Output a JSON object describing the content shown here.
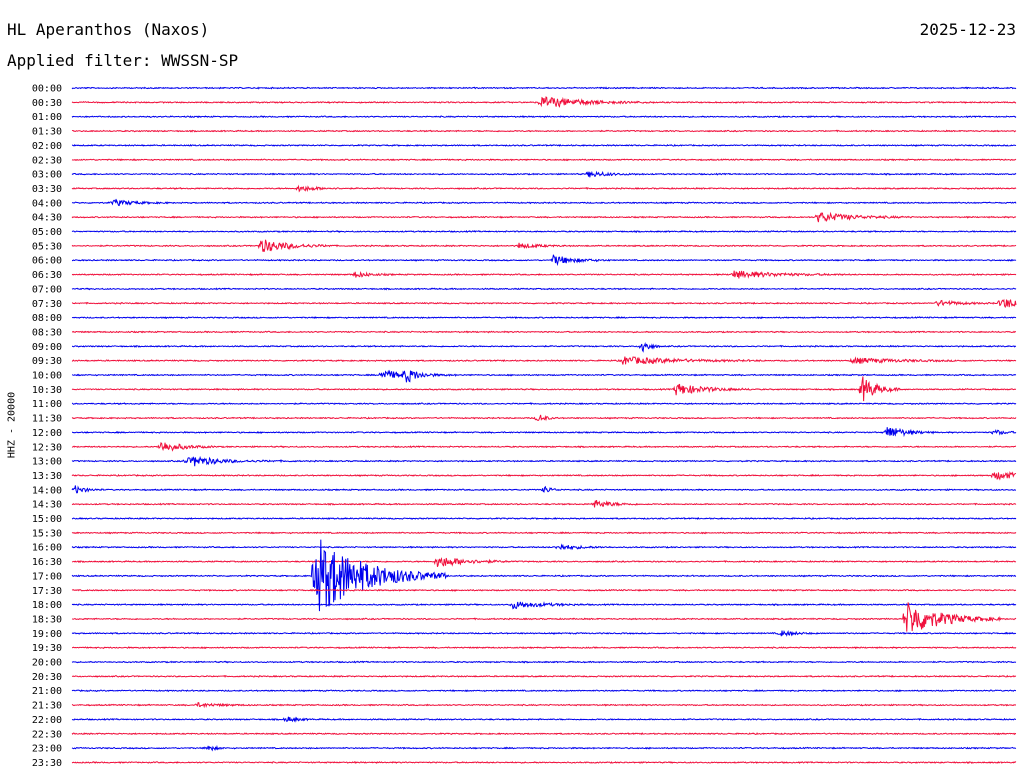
{
  "header": {
    "station": "HL Aperanthos (Naxos)",
    "date": "2025-12-23",
    "filter": "Applied filter: WWSSN-SP"
  },
  "chart_data": {
    "type": "line",
    "ylabel": "HHZ - 20000",
    "tick_labels": [
      "00:00",
      "00:30",
      "01:00",
      "01:30",
      "02:00",
      "02:30",
      "03:00",
      "03:30",
      "04:00",
      "04:30",
      "05:00",
      "05:30",
      "06:00",
      "06:30",
      "07:00",
      "07:30",
      "08:00",
      "08:30",
      "09:00",
      "09:30",
      "10:00",
      "10:30",
      "11:00",
      "11:30",
      "12:00",
      "12:30",
      "13:00",
      "13:30",
      "14:00",
      "14:30",
      "15:00",
      "15:30",
      "16:00",
      "16:30",
      "17:00",
      "17:30",
      "18:00",
      "18:30",
      "19:00",
      "19:30",
      "20:00",
      "20:30",
      "21:00",
      "21:30",
      "22:00",
      "22:30",
      "23:00",
      "23:30"
    ],
    "x_range_minutes": [
      0,
      30
    ],
    "colors": [
      "#0000ee",
      "#f0103c"
    ],
    "events": [
      {
        "line": "00:30",
        "t_min": 14.9,
        "amp": 6,
        "dur": 1.2
      },
      {
        "line": "03:00",
        "t_min": 16.4,
        "amp": 3,
        "dur": 0.6
      },
      {
        "line": "03:30",
        "t_min": 7.2,
        "amp": 3,
        "dur": 0.5
      },
      {
        "line": "04:00",
        "t_min": 1.3,
        "amp": 3,
        "dur": 0.6
      },
      {
        "line": "04:30",
        "t_min": 23.7,
        "amp": 5,
        "dur": 1.0
      },
      {
        "line": "05:30",
        "t_min": 6.0,
        "amp": 7,
        "dur": 0.8
      },
      {
        "line": "05:30",
        "t_min": 14.2,
        "amp": 3,
        "dur": 0.5
      },
      {
        "line": "06:00",
        "t_min": 15.3,
        "amp": 5,
        "dur": 0.6
      },
      {
        "line": "06:30",
        "t_min": 9.0,
        "amp": 3,
        "dur": 0.4
      },
      {
        "line": "06:30",
        "t_min": 21.0,
        "amp": 4,
        "dur": 1.2
      },
      {
        "line": "07:30",
        "t_min": 27.5,
        "amp": 3,
        "dur": 0.6
      },
      {
        "line": "07:30",
        "t_min": 29.5,
        "amp": 6,
        "dur": 0.6
      },
      {
        "line": "09:00",
        "t_min": 18.1,
        "amp": 8,
        "dur": 0.2
      },
      {
        "line": "09:30",
        "t_min": 17.5,
        "amp": 4,
        "dur": 1.5
      },
      {
        "line": "09:30",
        "t_min": 24.8,
        "amp": 3,
        "dur": 1.2
      },
      {
        "line": "10:00",
        "t_min": 9.8,
        "amp": 5,
        "dur": 0.8
      },
      {
        "line": "10:00",
        "t_min": 10.6,
        "amp": 7,
        "dur": 0.3
      },
      {
        "line": "10:30",
        "t_min": 19.2,
        "amp": 6,
        "dur": 0.8
      },
      {
        "line": "10:30",
        "t_min": 25.1,
        "amp": 14,
        "dur": 0.4
      },
      {
        "line": "11:30",
        "t_min": 14.8,
        "amp": 5,
        "dur": 0.2
      },
      {
        "line": "12:00",
        "t_min": 25.9,
        "amp": 7,
        "dur": 0.5
      },
      {
        "line": "12:00",
        "t_min": 29.3,
        "amp": 3,
        "dur": 0.3
      },
      {
        "line": "12:30",
        "t_min": 2.8,
        "amp": 6,
        "dur": 0.6
      },
      {
        "line": "13:00",
        "t_min": 3.6,
        "amp": 3,
        "dur": 1.2
      },
      {
        "line": "13:00",
        "t_min": 3.9,
        "amp": 3,
        "dur": 0.4
      },
      {
        "line": "13:30",
        "t_min": 29.3,
        "amp": 4,
        "dur": 1.0
      },
      {
        "line": "14:00",
        "t_min": 0.1,
        "amp": 4,
        "dur": 0.3
      },
      {
        "line": "14:00",
        "t_min": 15.0,
        "amp": 4,
        "dur": 0.2
      },
      {
        "line": "14:30",
        "t_min": 16.6,
        "amp": 4,
        "dur": 0.5
      },
      {
        "line": "16:00",
        "t_min": 15.4,
        "amp": 3,
        "dur": 0.6
      },
      {
        "line": "16:30",
        "t_min": 11.6,
        "amp": 6,
        "dur": 0.8
      },
      {
        "line": "17:00",
        "t_min": 7.7,
        "amp": 42,
        "dur": 1.4
      },
      {
        "line": "18:00",
        "t_min": 14.0,
        "amp": 4,
        "dur": 0.8
      },
      {
        "line": "18:30",
        "t_min": 26.5,
        "amp": 18,
        "dur": 1.0
      },
      {
        "line": "19:00",
        "t_min": 22.5,
        "amp": 3,
        "dur": 0.4
      },
      {
        "line": "21:30",
        "t_min": 4.0,
        "amp": 2,
        "dur": 0.6
      },
      {
        "line": "22:00",
        "t_min": 6.8,
        "amp": 3,
        "dur": 0.3
      },
      {
        "line": "23:00",
        "t_min": 4.3,
        "amp": 4,
        "dur": 0.2
      }
    ]
  }
}
